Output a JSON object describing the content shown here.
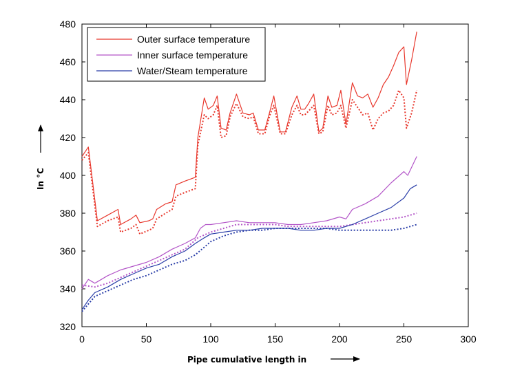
{
  "chart_data": {
    "type": "line",
    "title": "",
    "xlabel": "Pipe cumulative length in",
    "ylabel": "In °C",
    "xlim": [
      0,
      300
    ],
    "ylim": [
      320,
      480
    ],
    "xticks": [
      "0",
      "50",
      "100",
      "150",
      "200",
      "250",
      "300"
    ],
    "yticks": [
      "320",
      "340",
      "360",
      "380",
      "400",
      "420",
      "440",
      "460",
      "480"
    ],
    "grid": false,
    "legend_position": "top-left",
    "series": [
      {
        "name": "Outer surface temperature",
        "style": "solid",
        "color": "#e8372c",
        "x": [
          0,
          5,
          12,
          20,
          28,
          30,
          38,
          42,
          45,
          52,
          55,
          58,
          65,
          70,
          73,
          80,
          88,
          90,
          95,
          98,
          102,
          105,
          108,
          112,
          115,
          120,
          125,
          130,
          133,
          137,
          142,
          146,
          149,
          154,
          158,
          163,
          167,
          170,
          173,
          176,
          180,
          184,
          187,
          191,
          194,
          198,
          201,
          205,
          210,
          214,
          218,
          222,
          226,
          230,
          234,
          238,
          242,
          246,
          250,
          252,
          256,
          260
        ],
        "y": [
          410,
          415,
          376,
          379,
          382,
          374,
          377,
          379,
          375,
          376,
          377,
          382,
          385,
          386,
          395,
          397,
          399,
          420,
          441,
          435,
          437,
          442,
          425,
          424,
          433,
          443,
          433,
          432,
          433,
          424,
          424,
          434,
          442,
          423,
          423,
          436,
          442,
          435,
          435,
          438,
          443,
          423,
          425,
          442,
          436,
          437,
          445,
          427,
          449,
          442,
          441,
          443,
          436,
          441,
          448,
          452,
          458,
          465,
          468,
          448,
          461,
          476
        ]
      },
      {
        "name": "",
        "style": "dotted",
        "color": "#e8372c",
        "x": [
          0,
          5,
          12,
          20,
          28,
          30,
          38,
          42,
          45,
          52,
          55,
          58,
          65,
          70,
          73,
          80,
          88,
          90,
          95,
          98,
          102,
          105,
          108,
          112,
          115,
          120,
          125,
          130,
          133,
          137,
          142,
          146,
          149,
          154,
          158,
          163,
          167,
          170,
          173,
          176,
          180,
          184,
          187,
          191,
          194,
          198,
          201,
          205,
          210,
          214,
          218,
          222,
          226,
          230,
          234,
          238,
          242,
          246,
          250,
          252,
          256,
          260
        ],
        "y": [
          408,
          412,
          373,
          376,
          378,
          370,
          372,
          374,
          369,
          371,
          372,
          377,
          380,
          382,
          389,
          391,
          393,
          416,
          432,
          430,
          432,
          437,
          420,
          421,
          431,
          438,
          431,
          430,
          431,
          422,
          422,
          432,
          437,
          422,
          422,
          432,
          437,
          432,
          432,
          434,
          437,
          422,
          423,
          437,
          432,
          433,
          437,
          425,
          440,
          436,
          432,
          433,
          424,
          430,
          433,
          434,
          437,
          445,
          441,
          425,
          433,
          445
        ]
      },
      {
        "name": "Inner surface temperature",
        "style": "solid",
        "color": "#b355c8",
        "x": [
          0,
          5,
          10,
          15,
          20,
          30,
          40,
          50,
          60,
          70,
          80,
          88,
          92,
          96,
          100,
          110,
          120,
          130,
          140,
          150,
          160,
          170,
          180,
          190,
          200,
          205,
          210,
          220,
          230,
          240,
          250,
          253,
          260
        ],
        "y": [
          340,
          345,
          343,
          345,
          347,
          350,
          352,
          354,
          357,
          361,
          364,
          367,
          372,
          374,
          374,
          375,
          376,
          375,
          375,
          375,
          374,
          374,
          375,
          376,
          378,
          377,
          382,
          385,
          389,
          396,
          402,
          400,
          410
        ]
      },
      {
        "name": "",
        "style": "dotted",
        "color": "#b355c8",
        "x": [
          0,
          10,
          20,
          30,
          40,
          50,
          60,
          70,
          80,
          90,
          100,
          110,
          120,
          130,
          140,
          150,
          160,
          170,
          180,
          190,
          200,
          210,
          220,
          230,
          240,
          250,
          260
        ],
        "y": [
          342,
          341,
          343,
          346,
          349,
          352,
          355,
          358,
          361,
          367,
          370,
          372,
          374,
          374,
          374,
          374,
          373,
          373,
          373,
          373,
          373,
          374,
          375,
          376,
          377,
          378,
          380
        ]
      },
      {
        "name": "Water/Steam temperature",
        "style": "solid",
        "color": "#2a3ea8",
        "x": [
          0,
          5,
          10,
          20,
          30,
          40,
          50,
          60,
          70,
          80,
          88,
          95,
          100,
          110,
          120,
          130,
          140,
          150,
          160,
          170,
          180,
          190,
          200,
          210,
          220,
          230,
          240,
          250,
          255,
          260
        ],
        "y": [
          329,
          334,
          338,
          341,
          345,
          348,
          351,
          353,
          357,
          360,
          364,
          367,
          369,
          370,
          371,
          371,
          372,
          372,
          372,
          371,
          371,
          372,
          372,
          374,
          377,
          380,
          383,
          388,
          393,
          395
        ]
      },
      {
        "name": "",
        "style": "dotted",
        "color": "#2a3ea8",
        "x": [
          0,
          5,
          10,
          20,
          30,
          40,
          50,
          60,
          70,
          80,
          88,
          95,
          100,
          110,
          120,
          130,
          140,
          150,
          160,
          170,
          180,
          190,
          200,
          210,
          220,
          230,
          240,
          250,
          260
        ],
        "y": [
          328,
          332,
          336,
          339,
          342,
          345,
          347,
          350,
          353,
          355,
          358,
          362,
          365,
          368,
          370,
          371,
          371,
          372,
          372,
          372,
          372,
          372,
          371,
          371,
          371,
          371,
          371,
          372,
          374
        ]
      }
    ]
  }
}
